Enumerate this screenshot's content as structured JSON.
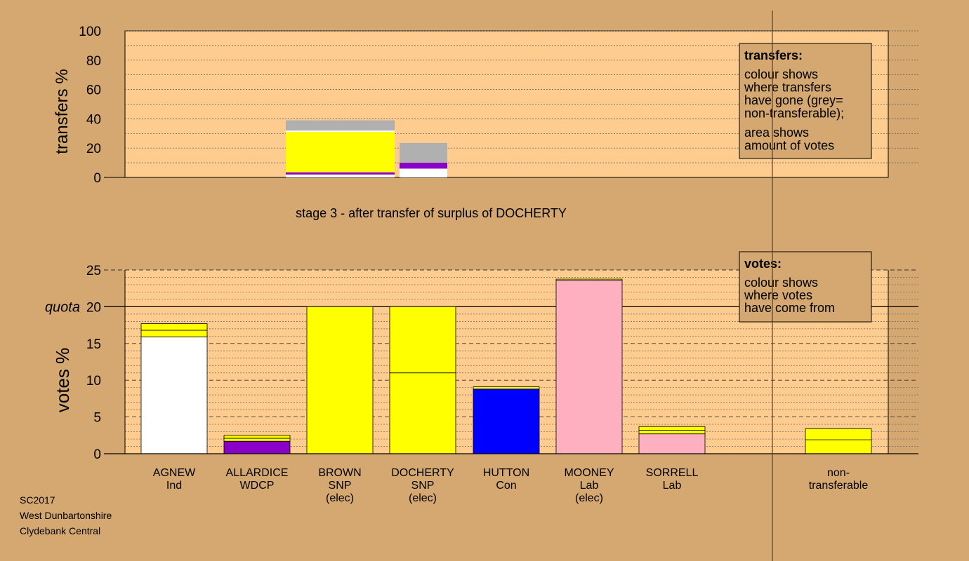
{
  "chart_data": [
    {
      "type": "bar",
      "stacked": true,
      "ylabel": "transfers %",
      "ylim": [
        0,
        100
      ],
      "yticks": [
        0,
        20,
        40,
        60,
        80,
        100
      ],
      "grid": true,
      "stage_caption": "stage 3 - after transfer of surplus of DOCHERTY",
      "bars": [
        {
          "from": "BROWN",
          "segments": [
            {
              "color": "#ffffff",
              "value": 2
            },
            {
              "color": "#8b00c8",
              "value": 1.5
            },
            {
              "color": "#ffff00",
              "value": 27.5
            },
            {
              "color": "#ffffff",
              "value": 1
            },
            {
              "color": "#b0b0b0",
              "value": 7
            }
          ]
        },
        {
          "from": "DOCHERTY",
          "segments": [
            {
              "color": "#ffffff",
              "value": 6
            },
            {
              "color": "#8b00c8",
              "value": 4
            },
            {
              "color": "#b0b0b0",
              "value": 13.5
            }
          ]
        }
      ],
      "legend": {
        "title": "transfers:",
        "lines1": [
          "colour shows",
          "where transfers",
          "have gone (grey=",
          "non-transferable);"
        ],
        "lines2": [
          "area shows",
          "amount of votes"
        ]
      }
    },
    {
      "type": "bar",
      "stacked": true,
      "ylabel": "votes %",
      "ylim": [
        0,
        25
      ],
      "yticks": [
        0,
        5,
        10,
        15,
        20,
        25
      ],
      "quota": 20,
      "quota_label": "quota",
      "grid": true,
      "categories": [
        {
          "lines": [
            "AGNEW",
            "Ind"
          ]
        },
        {
          "lines": [
            "ALLARDICE",
            "WDCP"
          ]
        },
        {
          "lines": [
            "BROWN",
            "SNP",
            "(elec)"
          ]
        },
        {
          "lines": [
            "DOCHERTY",
            "SNP",
            "(elec)"
          ]
        },
        {
          "lines": [
            "HUTTON",
            "Con"
          ]
        },
        {
          "lines": [
            "MOONEY",
            "Lab",
            "(elec)"
          ]
        },
        {
          "lines": [
            "SORRELL",
            "Lab"
          ]
        },
        {
          "lines": [
            "non-",
            "transferable"
          ]
        }
      ],
      "bars": [
        [
          {
            "color": "#ffffff",
            "value": 15.9
          },
          {
            "color": "#ffff00",
            "value": 0.9
          },
          {
            "color": "#ffff00",
            "value": 0.9
          }
        ],
        [
          {
            "color": "#8b00c8",
            "value": 1.7
          },
          {
            "color": "#ffff00",
            "value": 0.4
          },
          {
            "color": "#ffff00",
            "value": 0.4
          }
        ],
        [
          {
            "color": "#ffff00",
            "value": 20
          }
        ],
        [
          {
            "color": "#ffff00",
            "value": 11
          },
          {
            "color": "#ffff00",
            "value": 9
          }
        ],
        [
          {
            "color": "#0000ff",
            "value": 8.8
          },
          {
            "color": "#ffff00",
            "value": 0.3
          }
        ],
        [
          {
            "color": "#ffb0c0",
            "value": 23.6
          },
          {
            "color": "#ffff00",
            "value": 0.15
          }
        ],
        [
          {
            "color": "#ffb0c0",
            "value": 2.7
          },
          {
            "color": "#ffff00",
            "value": 0.5
          },
          {
            "color": "#ffff00",
            "value": 0.5
          }
        ],
        [
          {
            "color": "#ffff00",
            "value": 1.9
          },
          {
            "color": "#ffff00",
            "value": 1.5
          }
        ]
      ],
      "legend": {
        "title": "votes:",
        "lines1": [
          "colour shows",
          "where votes",
          "have come from"
        ]
      }
    }
  ],
  "footer": {
    "line1": "SC2017",
    "line2": "West Dunbartonshire",
    "line3": "Clydebank Central"
  },
  "colors": {
    "background": "#d4a870",
    "plot_bg": "#ffcc90",
    "legend_bg": "#d4a870"
  }
}
